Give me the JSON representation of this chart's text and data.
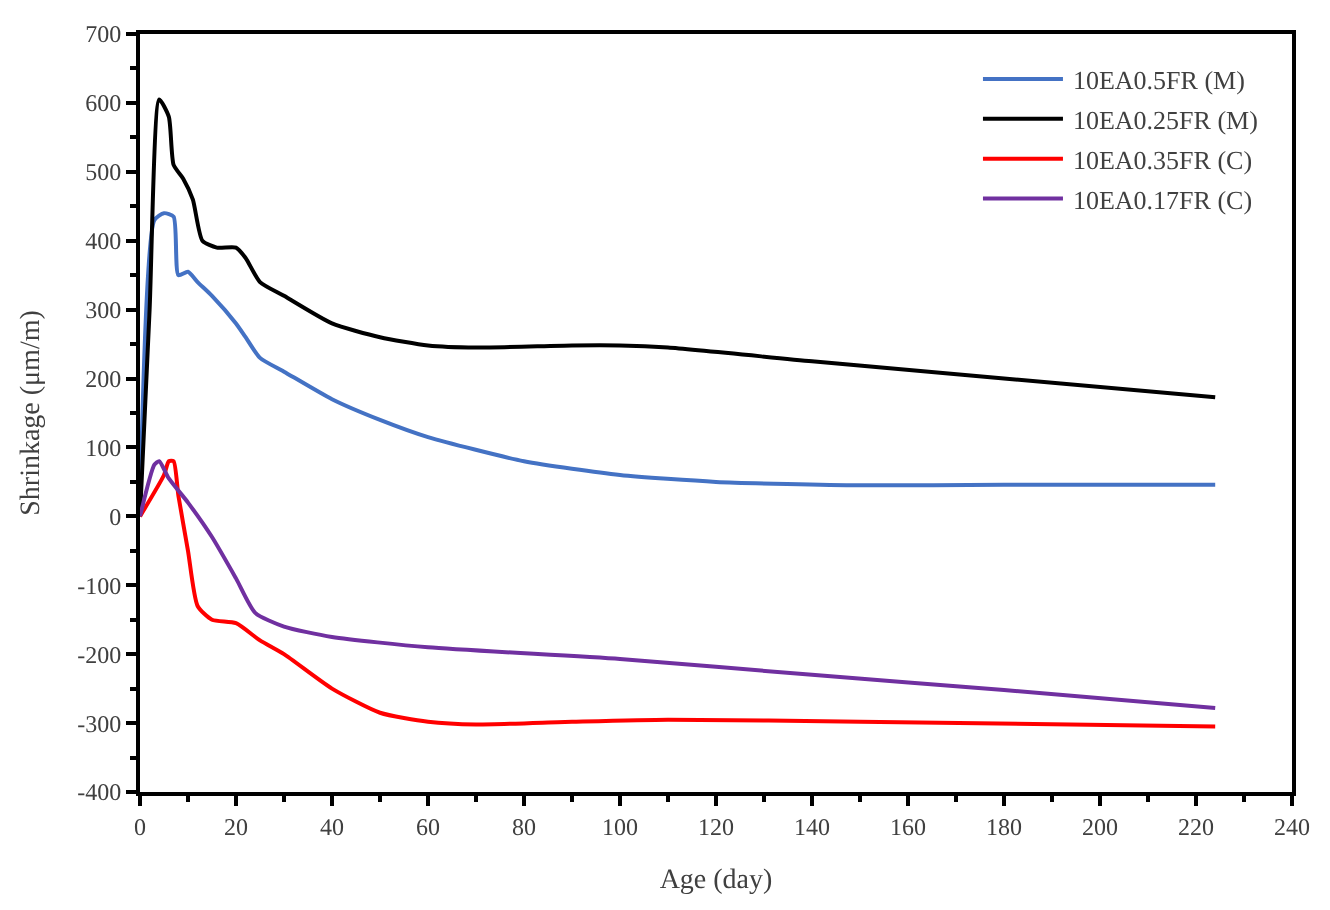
{
  "chart_data": {
    "type": "line",
    "xlabel": "Age (day)",
    "ylabel": "Shrinkage (μm/m)",
    "xlim": [
      0,
      240
    ],
    "xticks": [
      0,
      20,
      40,
      60,
      80,
      100,
      120,
      140,
      160,
      180,
      200,
      220,
      240
    ],
    "ylim": [
      -400,
      700
    ],
    "yticks": [
      -400,
      -300,
      -200,
      -100,
      0,
      100,
      200,
      300,
      400,
      500,
      600,
      700
    ],
    "legend": "top right",
    "marker": "none",
    "line_style": "solid",
    "series": [
      {
        "name": "10EA0.5FR (M)",
        "color": "#4472c4",
        "x": [
          0,
          3,
          5,
          7,
          8,
          10,
          12,
          15,
          20,
          22,
          25,
          30,
          40,
          50,
          60,
          80,
          100,
          120,
          150,
          180,
          224
        ],
        "values": [
          0,
          430,
          440,
          435,
          350,
          355,
          340,
          320,
          280,
          260,
          230,
          210,
          170,
          140,
          115,
          80,
          60,
          50,
          45,
          46,
          46
        ]
      },
      {
        "name": "10EA0.25FR (M)",
        "color": "#000000",
        "x": [
          0,
          2,
          4,
          6,
          7,
          9,
          11,
          13,
          16,
          20,
          22,
          25,
          30,
          40,
          50,
          60,
          70,
          90,
          100,
          110,
          140,
          180,
          224
        ],
        "values": [
          0,
          300,
          605,
          580,
          510,
          490,
          460,
          400,
          390,
          390,
          375,
          340,
          320,
          280,
          260,
          248,
          245,
          248,
          248,
          245,
          225,
          200,
          173
        ]
      },
      {
        "name": "10EA0.35FR (C)",
        "color": "#ff0000",
        "x": [
          0,
          5,
          6,
          7,
          8,
          10,
          12,
          15,
          20,
          25,
          30,
          40,
          50,
          60,
          70,
          90,
          110,
          150,
          224
        ],
        "values": [
          0,
          60,
          80,
          80,
          30,
          -50,
          -130,
          -150,
          -155,
          -180,
          -200,
          -250,
          -285,
          -298,
          -302,
          -298,
          -295,
          -298,
          -305
        ]
      },
      {
        "name": "10EA0.17FR (C)",
        "color": "#7030a0",
        "x": [
          0,
          3,
          4,
          6,
          10,
          15,
          20,
          24,
          30,
          40,
          60,
          100,
          140,
          180,
          224
        ],
        "values": [
          0,
          75,
          80,
          55,
          20,
          -30,
          -90,
          -140,
          -160,
          -175,
          -190,
          -207,
          -230,
          -252,
          -278
        ]
      }
    ]
  }
}
